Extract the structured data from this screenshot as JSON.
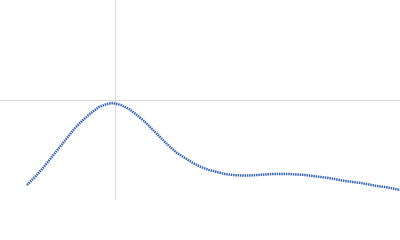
{
  "chart_data": {
    "type": "line",
    "x": [
      27,
      35,
      43,
      51,
      59,
      67,
      75,
      83,
      91,
      99,
      107,
      113,
      121,
      129,
      137,
      145,
      153,
      161,
      169,
      177,
      185,
      193,
      201,
      209,
      217,
      225,
      233,
      241,
      249,
      257,
      265,
      273,
      281,
      289,
      297,
      305,
      313,
      321,
      329,
      337,
      345,
      353,
      361,
      369,
      377,
      385,
      393,
      400
    ],
    "series": [
      {
        "color": "#3a66b5",
        "values": [
          15,
          23,
          32,
          42,
          52,
          62,
          72,
          80,
          87,
          93,
          96,
          97,
          95,
          91,
          85,
          78,
          70,
          62,
          54,
          47,
          42,
          37,
          33,
          30,
          28,
          26,
          25,
          24.5,
          24.5,
          25,
          25.5,
          26,
          26,
          26,
          25.5,
          25,
          24,
          23,
          22,
          20.5,
          19,
          18,
          17,
          15.5,
          14,
          13,
          11.5,
          10
        ]
      }
    ],
    "xlim": [
      0,
      400
    ],
    "ylim": [
      0,
      200
    ],
    "xticks": [
      115
    ],
    "yticks": [
      100
    ],
    "grid": true
  }
}
